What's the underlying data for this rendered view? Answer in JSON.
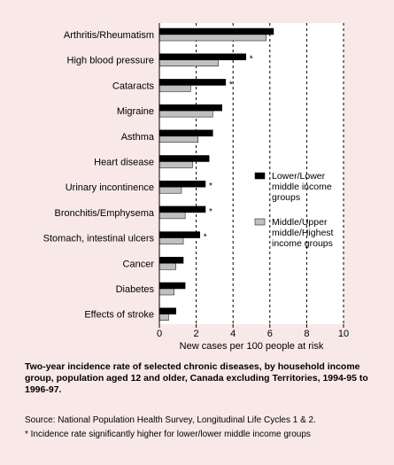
{
  "chart_data": {
    "type": "bar",
    "orientation": "horizontal",
    "categories": [
      "Arthritis/Rheumatism",
      "High blood pressure",
      "Cataracts",
      "Migraine",
      "Asthma",
      "Heart disease",
      "Urinary incontinence",
      "Bronchitis/Emphysema",
      "Stomach, intestinal ulcers",
      "Cancer",
      "Diabetes",
      "Effects of stroke"
    ],
    "series": [
      {
        "name": "Lower/Lower middle income groups",
        "color": "#000000",
        "values": [
          6.2,
          4.7,
          3.6,
          3.4,
          2.9,
          2.7,
          2.5,
          2.5,
          2.2,
          1.3,
          1.4,
          0.9
        ]
      },
      {
        "name": "Middle/Upper middle/Highest income groups",
        "color": "#c0c0c0",
        "values": [
          5.8,
          3.2,
          1.7,
          2.9,
          2.1,
          1.8,
          1.2,
          1.4,
          1.3,
          0.9,
          0.8,
          0.5
        ]
      }
    ],
    "significant": [
      false,
      true,
      true,
      false,
      false,
      false,
      true,
      true,
      true,
      false,
      false,
      false
    ],
    "significance_marker": "*",
    "xlabel": "New cases per 100 people at risk",
    "xlim": [
      0,
      10
    ],
    "xticks": [
      "0",
      "2",
      "4",
      "6",
      "8",
      "10"
    ],
    "grid": "dashed vertical",
    "legend_position": "right",
    "legend": [
      {
        "lines": [
          "Lower/Lower",
          "middle income",
          "groups"
        ],
        "color": "#000000"
      },
      {
        "lines": [
          "Middle/Upper",
          "middle/Highest",
          "income groups"
        ],
        "color": "#c0c0c0"
      }
    ]
  },
  "caption": "Two-year incidence rate of selected chronic diseases, by household income group, population aged 12 and older, Canada excluding Territories, 1994-95 to 1996-97.",
  "source": "Source: National Population Health Survey, Longitudinal Life Cycles 1 & 2.",
  "footnote": "* Incidence rate significantly higher for lower/lower middle income groups"
}
